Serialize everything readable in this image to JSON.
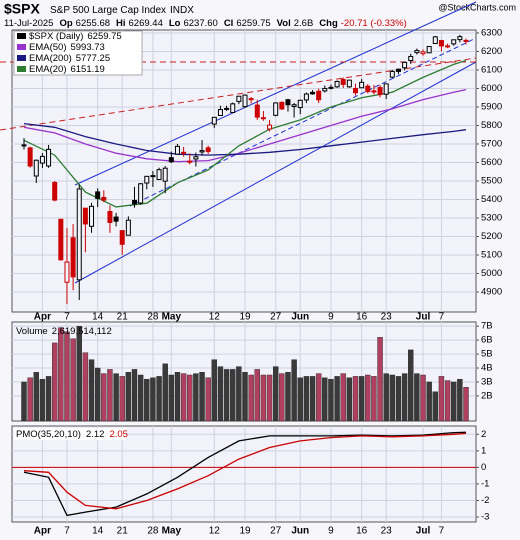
{
  "chart_data": [
    {
      "type": "candlestick",
      "title": "$SPX",
      "subtitle": "S&P 500 Large Cap Index",
      "exchange": "INDX",
      "date": "11-Jul-2025",
      "stats": [
        {
          "label": "Op",
          "value": 6255.68
        },
        {
          "label": "Hi",
          "value": 6269.44
        },
        {
          "label": "Lo",
          "value": 6237.6,
          "value_label": "6237.60"
        },
        {
          "label": "Cl",
          "value": 6259.75
        },
        {
          "label": "Vol",
          "value": "2.6B"
        },
        {
          "label": "Chg",
          "value": "-20.71 (-0.33%)"
        }
      ],
      "source": "@StockCharts.com",
      "name": "$SPX (Daily)",
      "x": [
        "2025-03-27",
        "2025-03-28",
        "2025-03-31",
        "2025-04-01",
        "2025-04-02",
        "2025-04-03",
        "2025-04-04",
        "2025-04-07",
        "2025-04-08",
        "2025-04-09",
        "2025-04-10",
        "2025-04-11",
        "2025-04-14",
        "2025-04-15",
        "2025-04-16",
        "2025-04-17",
        "2025-04-21",
        "2025-04-22",
        "2025-04-23",
        "2025-04-24",
        "2025-04-25",
        "2025-04-28",
        "2025-04-29",
        "2025-04-30",
        "2025-05-01",
        "2025-05-02",
        "2025-05-05",
        "2025-05-06",
        "2025-05-07",
        "2025-05-08",
        "2025-05-09",
        "2025-05-12",
        "2025-05-13",
        "2025-05-14",
        "2025-05-15",
        "2025-05-16",
        "2025-05-19",
        "2025-05-20",
        "2025-05-21",
        "2025-05-22",
        "2025-05-23",
        "2025-05-27",
        "2025-05-28",
        "2025-05-29",
        "2025-05-30",
        "2025-06-02",
        "2025-06-03",
        "2025-06-04",
        "2025-06-05",
        "2025-06-06",
        "2025-06-09",
        "2025-06-10",
        "2025-06-11",
        "2025-06-12",
        "2025-06-13",
        "2025-06-16",
        "2025-06-17",
        "2025-06-18",
        "2025-06-20",
        "2025-06-23",
        "2025-06-24",
        "2025-06-25",
        "2025-06-26",
        "2025-06-27",
        "2025-06-30",
        "2025-07-01",
        "2025-07-02",
        "2025-07-03",
        "2025-07-07",
        "2025-07-08",
        "2025-07-09",
        "2025-07-10",
        "2025-07-11"
      ],
      "open": [
        5695,
        5679,
        5527,
        5597,
        5581,
        5492,
        5293,
        4953,
        5193,
        4966,
        5353,
        5255,
        5441,
        5411,
        5335,
        5305,
        5232,
        5207,
        5395,
        5381,
        5489,
        5529,
        5508,
        5499,
        5626,
        5645,
        5655,
        5606,
        5619,
        5657,
        5679,
        5808,
        5854,
        5887,
        5870,
        5930,
        5902,
        5945,
        5910,
        5842,
        5781,
        5855,
        5925,
        5939,
        5903,
        5897,
        5938,
        5979,
        5985,
        5987,
        6004,
        6009,
        6049,
        6009,
        6000,
        6004,
        6012,
        5987,
        6005,
        5969,
        6061,
        6104,
        6112,
        6151,
        6194,
        6188,
        6193,
        6243,
        6259,
        6230,
        6241,
        6264,
        6255.68
      ],
      "high": [
        5732,
        5685,
        5617,
        5651,
        5695,
        5500,
        5293,
        5246,
        5267,
        5481,
        5353,
        5382,
        5460,
        5450,
        5368,
        5328,
        5232,
        5309,
        5469,
        5489,
        5528,
        5554,
        5572,
        5581,
        5659,
        5700,
        5684,
        5649,
        5654,
        5721,
        5691,
        5845,
        5907,
        5907,
        5924,
        5959,
        5968,
        5954,
        5939,
        5878,
        5830,
        5925,
        5930,
        5944,
        5922,
        5940,
        5978,
        5991,
        5999,
        6016,
        6021,
        6043,
        6059,
        6045,
        6026,
        6051,
        6024,
        6019,
        6018,
        6026,
        6101,
        6108,
        6146,
        6188,
        6216,
        6211,
        6228,
        6284,
        6263,
        6242,
        6265,
        6290,
        6269.44
      ],
      "low": [
        5670,
        5572,
        5489,
        5571,
        5571,
        5390,
        5070,
        4835,
        4910,
        4857,
        5115,
        5220,
        5359,
        5386,
        5220,
        5255,
        5101,
        5207,
        5356,
        5371,
        5455,
        5468,
        5505,
        5434,
        5597,
        5644,
        5632,
        5590,
        5578,
        5637,
        5646,
        5787,
        5854,
        5878,
        5868,
        5915,
        5895,
        5919,
        5830,
        5825,
        5768,
        5850,
        5885,
        5875,
        5843,
        5861,
        5921,
        5966,
        5921,
        5978,
        5995,
        6003,
        6002,
        6003,
        5963,
        6004,
        5974,
        5967,
        5952,
        5943,
        6057,
        6077,
        6098,
        6133,
        6183,
        6177,
        6191,
        6241,
        6201,
        6218,
        6231,
        6249,
        6237.6
      ],
      "close": [
        5693,
        5581,
        5612,
        5633,
        5671,
        5397,
        5074,
        5062,
        4982,
        5457,
        5268,
        5363,
        5406,
        5397,
        5276,
        5283,
        5158,
        5288,
        5376,
        5485,
        5525,
        5529,
        5561,
        5569,
        5604,
        5687,
        5650,
        5607,
        5631,
        5664,
        5660,
        5844,
        5886,
        5892,
        5917,
        5958,
        5964,
        5940,
        5845,
        5842,
        5802,
        5922,
        5889,
        5912,
        5912,
        5936,
        5970,
        5971,
        5939,
        6000,
        6006,
        6038,
        6022,
        6045,
        5977,
        6033,
        5983,
        5981,
        5967,
        6025,
        6092,
        6092,
        6141,
        6173,
        6205,
        6198,
        6227,
        6279,
        6230,
        6226,
        6263,
        6280,
        6259.75
      ],
      "up_color": "#000000",
      "down_color": "#cc0000",
      "series": [
        {
          "name": "EMA(50)",
          "color": "#9933cc",
          "x": [
            "2025-03-27",
            "2025-04-03",
            "2025-04-10",
            "2025-04-17",
            "2025-04-25",
            "2025-05-02",
            "2025-05-09",
            "2025-05-16",
            "2025-05-23",
            "2025-06-02",
            "2025-06-09",
            "2025-06-16",
            "2025-06-24",
            "2025-07-01",
            "2025-07-09",
            "2025-07-11"
          ],
          "values": [
            5790,
            5760,
            5700,
            5650,
            5620,
            5605,
            5610,
            5650,
            5700,
            5750,
            5800,
            5850,
            5890,
            5940,
            5980,
            5993.73
          ]
        },
        {
          "name": "EMA(200)",
          "color": "#1a1a80",
          "x": [
            "2025-03-27",
            "2025-04-03",
            "2025-04-10",
            "2025-04-17",
            "2025-04-25",
            "2025-05-02",
            "2025-05-09",
            "2025-05-16",
            "2025-05-23",
            "2025-06-02",
            "2025-06-09",
            "2025-06-16",
            "2025-06-24",
            "2025-07-01",
            "2025-07-09",
            "2025-07-11"
          ],
          "values": [
            5810,
            5790,
            5740,
            5700,
            5665,
            5645,
            5640,
            5645,
            5655,
            5670,
            5690,
            5710,
            5730,
            5750,
            5768,
            5777.25
          ]
        },
        {
          "name": "EMA(20)",
          "color": "#2e7d32",
          "x": [
            "2025-03-27",
            "2025-04-03",
            "2025-04-10",
            "2025-04-17",
            "2025-04-25",
            "2025-05-02",
            "2025-05-09",
            "2025-05-16",
            "2025-05-23",
            "2025-06-02",
            "2025-06-09",
            "2025-06-16",
            "2025-06-24",
            "2025-07-01",
            "2025-07-09",
            "2025-07-11"
          ],
          "values": [
            5720,
            5640,
            5440,
            5360,
            5380,
            5490,
            5560,
            5690,
            5780,
            5830,
            5900,
            5950,
            5980,
            6060,
            6130,
            6151.19
          ]
        }
      ],
      "ylim": [
        4792,
        6316
      ],
      "yticks": [
        4900,
        5000,
        5100,
        5200,
        5300,
        5400,
        5500,
        5600,
        5700,
        5800,
        5900,
        6000,
        6100,
        6200,
        6300
      ],
      "xticks": [
        {
          "value": "2025-04-01",
          "label": "Apr"
        },
        {
          "value": "2025-04-07",
          "label": "7"
        },
        {
          "value": "2025-04-14",
          "label": "14"
        },
        {
          "value": "2025-04-21",
          "label": "21"
        },
        {
          "value": "2025-04-28",
          "label": "28"
        },
        {
          "value": "2025-05-01",
          "label": "May"
        },
        {
          "value": "2025-05-12",
          "label": "12"
        },
        {
          "value": "2025-05-19",
          "label": "19"
        },
        {
          "value": "2025-05-27",
          "label": "27"
        },
        {
          "value": "2025-06-02",
          "label": "Jun"
        },
        {
          "value": "2025-06-09",
          "label": "9"
        },
        {
          "value": "2025-06-16",
          "label": "16"
        },
        {
          "value": "2025-06-23",
          "label": "23"
        },
        {
          "value": "2025-07-01",
          "label": "Jul"
        },
        {
          "value": "2025-07-07",
          "label": "7"
        }
      ],
      "grid": true
    },
    {
      "type": "bar",
      "name": "Volume",
      "last_label": "2,619,514,112",
      "values": [
        3.0,
        3.3,
        3.7,
        3.2,
        3.4,
        5.8,
        6.9,
        6.6,
        6.1,
        7.0,
        5.1,
        4.6,
        4.0,
        3.6,
        3.9,
        3.6,
        3.4,
        3.7,
        3.9,
        3.5,
        3.2,
        3.3,
        3.4,
        4.3,
        3.5,
        3.7,
        3.6,
        3.5,
        3.6,
        3.7,
        3.3,
        4.6,
        4.1,
        3.9,
        3.9,
        4.1,
        3.7,
        3.5,
        3.9,
        3.5,
        3.5,
        4.1,
        3.6,
        3.7,
        4.6,
        3.3,
        3.4,
        3.4,
        3.6,
        3.3,
        3.2,
        3.4,
        3.6,
        3.3,
        3.4,
        3.4,
        3.5,
        3.4,
        6.2,
        3.6,
        3.5,
        3.4,
        3.6,
        5.3,
        3.6,
        3.5,
        3.0,
        2.3,
        3.4,
        3.1,
        3.0,
        3.2,
        2.619514112
      ],
      "up_color": "#3a3a3a",
      "down_color": "#b0405f",
      "ylim": [
        0.2,
        7.3
      ],
      "yticks": [
        {
          "value": 2,
          "label": "2B"
        },
        {
          "value": 3,
          "label": "3B"
        },
        {
          "value": 4,
          "label": "4B"
        },
        {
          "value": 5,
          "label": "5B"
        },
        {
          "value": 6,
          "label": "6B"
        },
        {
          "value": 7,
          "label": "7B"
        }
      ],
      "grid": true
    },
    {
      "type": "line",
      "name": "PMO(35,20,10)",
      "series": [
        {
          "color": "#000000",
          "x": [
            "2025-03-27",
            "2025-04-02",
            "2025-04-07",
            "2025-04-10",
            "2025-04-17",
            "2025-04-25",
            "2025-05-02",
            "2025-05-09",
            "2025-05-16",
            "2025-05-23",
            "2025-06-02",
            "2025-06-09",
            "2025-06-16",
            "2025-06-24",
            "2025-07-01",
            "2025-07-09",
            "2025-07-11"
          ],
          "values": [
            -0.3,
            -0.6,
            -2.9,
            -2.7,
            -2.4,
            -1.6,
            -0.6,
            0.6,
            1.6,
            1.9,
            1.9,
            1.9,
            1.95,
            1.9,
            1.95,
            2.1,
            2.12
          ]
        },
        {
          "color": "#cc0000",
          "x": [
            "2025-03-27",
            "2025-04-02",
            "2025-04-07",
            "2025-04-10",
            "2025-04-17",
            "2025-04-25",
            "2025-05-02",
            "2025-05-09",
            "2025-05-16",
            "2025-05-23",
            "2025-06-02",
            "2025-06-09",
            "2025-06-16",
            "2025-06-24",
            "2025-07-01",
            "2025-07-09",
            "2025-07-11"
          ],
          "values": [
            -0.2,
            -0.3,
            -1.5,
            -2.3,
            -2.5,
            -2.0,
            -1.3,
            -0.5,
            0.5,
            1.2,
            1.6,
            1.8,
            1.9,
            1.85,
            1.9,
            2.0,
            2.05
          ]
        }
      ],
      "zero_line_color": "#cc0000",
      "ylim": [
        -3.3,
        2.5
      ],
      "yticks": [
        -3,
        -2,
        -1,
        0,
        1,
        2
      ],
      "grid": true
    }
  ]
}
